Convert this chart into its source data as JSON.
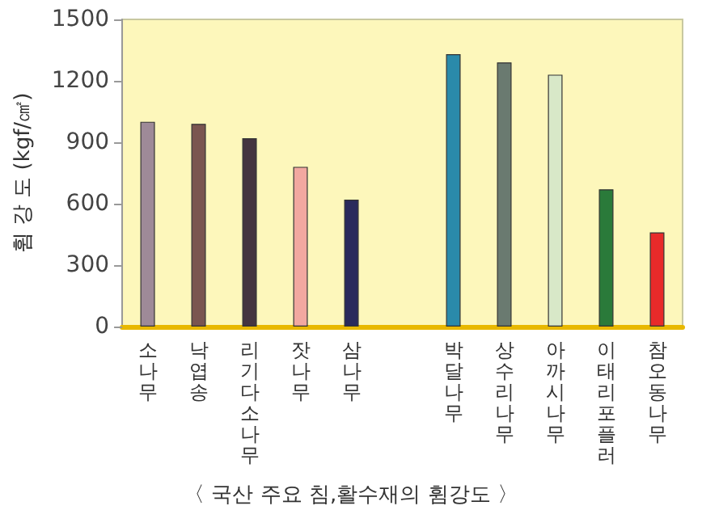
{
  "chart_data": {
    "type": "bar",
    "title": "〈 국산 주요 침,활수재의 휨강도 〉",
    "ylabel": "휨 강 도 (kgf/㎠)",
    "categories": [
      "소나무",
      "낙엽송",
      "리기다소나무",
      "잣나무",
      "삼나무",
      null,
      "박달나무",
      "상수리나무",
      "아까시나무",
      "이태리포플러",
      "참오동나무"
    ],
    "values": [
      1000,
      990,
      920,
      780,
      620,
      null,
      1330,
      1290,
      1230,
      670,
      460
    ],
    "colors": [
      "#9e8a98",
      "#7a5550",
      "#453540",
      "#f2a8a0",
      "#2a2a5c",
      "#ffffff",
      "#2a8aaa",
      "#6a7a70",
      "#d8e8c8",
      "#2a7a3a",
      "#e82a2a"
    ],
    "ylim": [
      0,
      1500
    ],
    "yticks": [
      0,
      300,
      600,
      900,
      1200,
      1500
    ],
    "grid": false
  }
}
